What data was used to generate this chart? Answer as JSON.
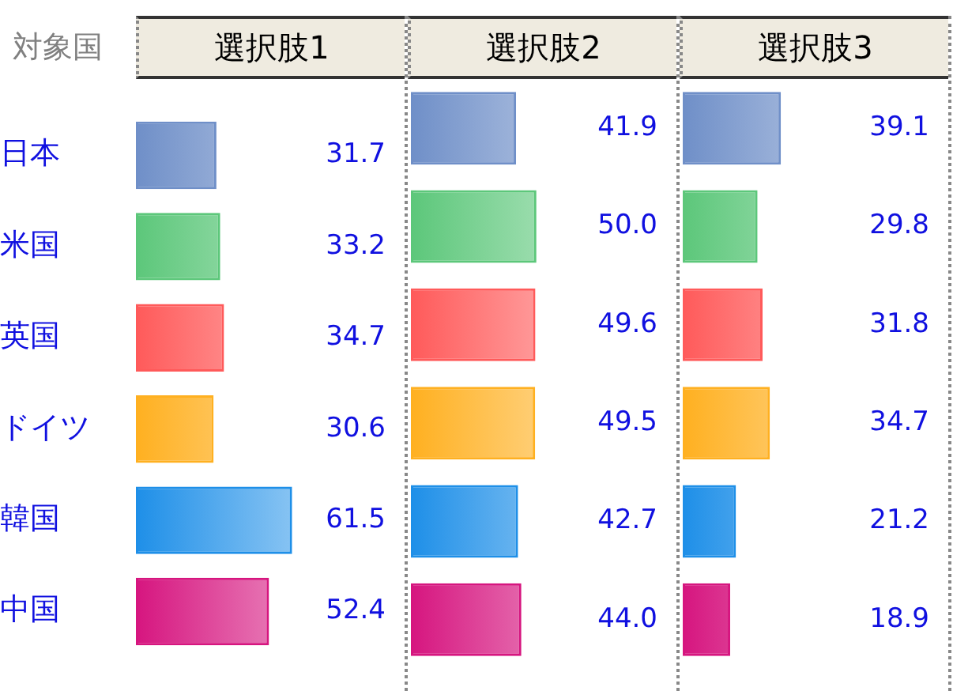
{
  "chart_data": [
    {
      "type": "bar",
      "orientation": "horizontal",
      "title": "選択肢1",
      "ylabel": "対象国",
      "categories": [
        "日本",
        "米国",
        "英国",
        "ドイツ",
        "韓国",
        "中国"
      ],
      "values": [
        31.7,
        33.2,
        34.7,
        30.6,
        61.5,
        52.4
      ],
      "value_labels": [
        "31.7",
        "33.2",
        "34.7",
        "30.6",
        "61.5",
        "52.4"
      ],
      "colors": [
        "#6f8fc8",
        "#5cc77a",
        "#ff5a5a",
        "#ffb020",
        "#1e8fe8",
        "#d6157f"
      ],
      "tick_labels": "y"
    },
    {
      "type": "bar",
      "orientation": "horizontal",
      "title": "選択肢2",
      "categories": [
        null,
        null,
        null,
        null,
        null,
        null
      ],
      "values": [
        41.9,
        50.0,
        49.6,
        49.5,
        42.7,
        44.0
      ],
      "value_labels": [
        "41.9",
        "50.0",
        "49.6",
        "49.5",
        "42.7",
        "44.0"
      ],
      "colors": [
        "#6f8fc8",
        "#5cc77a",
        "#ff5a5a",
        "#ffb020",
        "#1e8fe8",
        "#d6157f"
      ],
      "tick_labels": false
    },
    {
      "type": "bar",
      "orientation": "horizontal",
      "title": "選択肢3",
      "categories": [
        null,
        null,
        null,
        null,
        null,
        null
      ],
      "values": [
        39.1,
        29.8,
        31.8,
        34.7,
        21.2,
        18.9
      ],
      "value_labels": [
        "39.1",
        "29.8",
        "31.8",
        "34.7",
        "21.2",
        "18.9"
      ],
      "colors": [
        "#6f8fc8",
        "#5cc77a",
        "#ff5a5a",
        "#ffb020",
        "#1e8fe8",
        "#d6157f"
      ],
      "tick_labels": false
    }
  ]
}
